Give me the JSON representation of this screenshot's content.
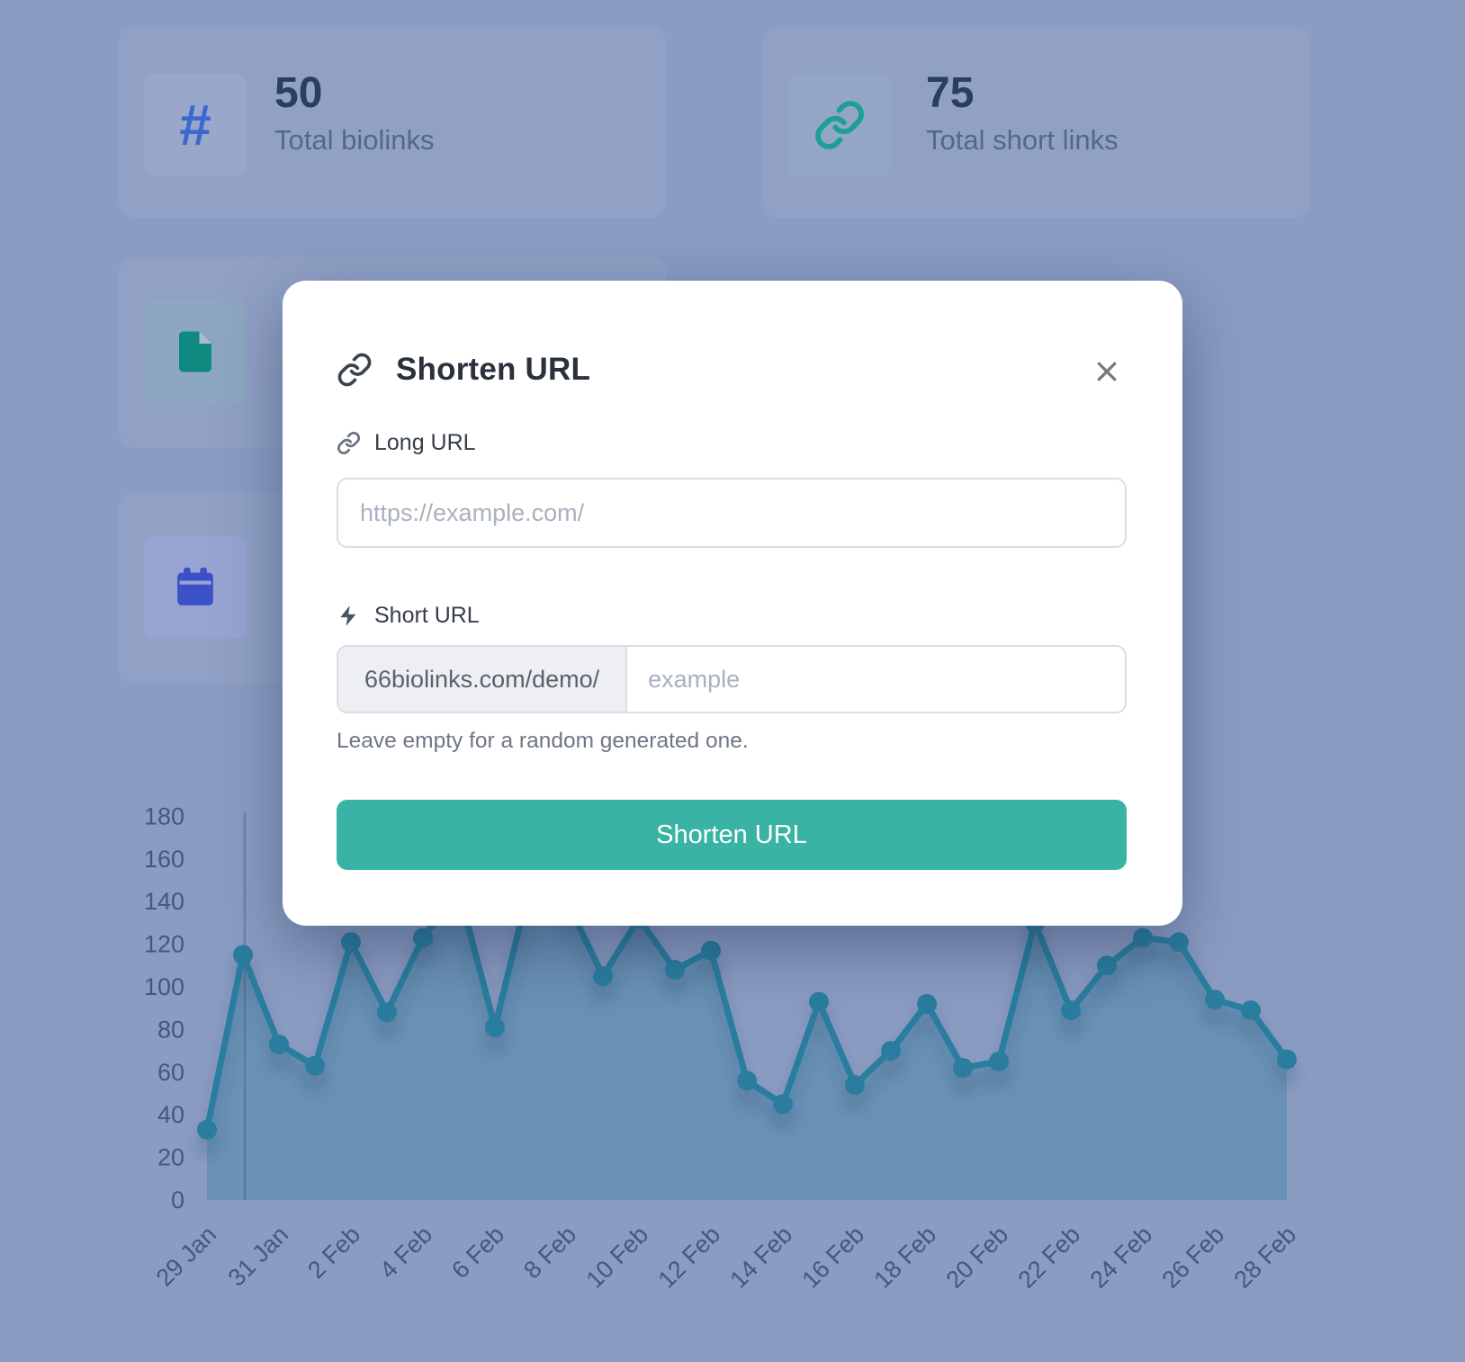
{
  "header_cards": [
    {
      "id": "biolinks",
      "icon": "hashtag-icon",
      "value": "50",
      "label": "Total biolinks"
    },
    {
      "id": "short-links",
      "icon": "chain-icon",
      "value": "75",
      "label": "Total short links"
    },
    {
      "id": "pages",
      "icon": "file-icon"
    },
    {
      "id": "events",
      "icon": "calendar-icon"
    }
  ],
  "modal": {
    "title": "Shorten URL",
    "long_url": {
      "label": "Long URL",
      "placeholder": "https://example.com/"
    },
    "short_url": {
      "label": "Short URL",
      "prefix": "66biolinks.com/demo/",
      "placeholder": "example",
      "helper": "Leave empty for a random generated one."
    },
    "submit_label": "Shorten URL"
  },
  "chart_data": {
    "type": "line",
    "x": [
      "29 Jan",
      "30 Jan",
      "31 Jan",
      "1 Feb",
      "2 Feb",
      "3 Feb",
      "4 Feb",
      "5 Feb",
      "6 Feb",
      "7 Feb",
      "8 Feb",
      "9 Feb",
      "10 Feb",
      "11 Feb",
      "12 Feb",
      "13 Feb",
      "14 Feb",
      "15 Feb",
      "16 Feb",
      "17 Feb",
      "18 Feb",
      "19 Feb",
      "20 Feb",
      "21 Feb",
      "22 Feb",
      "23 Feb",
      "24 Feb",
      "25 Feb",
      "26 Feb",
      "27 Feb",
      "28 Feb"
    ],
    "values": [
      33,
      115,
      73,
      63,
      121,
      88,
      123,
      145,
      81,
      150,
      140,
      105,
      132,
      108,
      117,
      56,
      45,
      93,
      54,
      70,
      92,
      62,
      65,
      130,
      89,
      110,
      123,
      121,
      94,
      89,
      66
    ],
    "xtick_labels": [
      "29 Jan",
      "31 Jan",
      "2 Feb",
      "4 Feb",
      "6 Feb",
      "8 Feb",
      "10 Feb",
      "12 Feb",
      "14 Feb",
      "16 Feb",
      "18 Feb",
      "20 Feb",
      "22 Feb",
      "24 Feb",
      "26 Feb",
      "28 Feb"
    ],
    "xtick_every": 2,
    "ylim": [
      0,
      180
    ],
    "ytick_step": 20,
    "title": "",
    "xlabel": "",
    "ylabel": "",
    "grid": false,
    "legend": false,
    "line_color": "#2b7d9e",
    "fill_color": "rgba(43,125,158,0.33)",
    "axis_label_color": "#42587e"
  },
  "colors": {
    "backdrop": "#8b9cc2",
    "accent_blue": "#3b69d0",
    "accent_teal": "#1aa096",
    "accent_green": "#0f8a80",
    "accent_indigo": "#3a51c8",
    "button_green": "#39b3a3",
    "stat_value": "#2b3e5e",
    "stat_label": "#54688c"
  }
}
